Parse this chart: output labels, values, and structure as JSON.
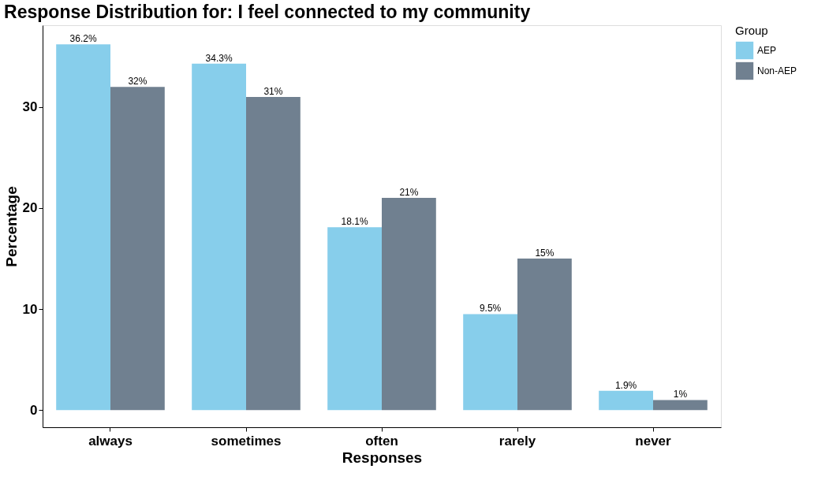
{
  "chart_data": {
    "type": "bar",
    "title": "Response Distribution for: I feel connected to my community",
    "xlabel": "Responses",
    "ylabel": "Percentage",
    "legend_title": "Group",
    "legend": "right",
    "grid": false,
    "categories": [
      "always",
      "sometimes",
      "often",
      "rarely",
      "never"
    ],
    "series": [
      {
        "name": "AEP",
        "color": "#87ceeb",
        "values": [
          36.2,
          34.3,
          18.1,
          9.5,
          1.9
        ],
        "value_labels": [
          "36.2%",
          "34.3%",
          "18.1%",
          "9.5%",
          "1.9%"
        ]
      },
      {
        "name": "Non-AEP",
        "color": "#708090",
        "values": [
          32,
          31,
          21,
          15,
          1
        ],
        "value_labels": [
          "32%",
          "31%",
          "21%",
          "15%",
          "1%"
        ]
      }
    ],
    "ylim": [
      -1.7,
      38.1
    ],
    "yticks": [
      0,
      10,
      20,
      30
    ]
  }
}
